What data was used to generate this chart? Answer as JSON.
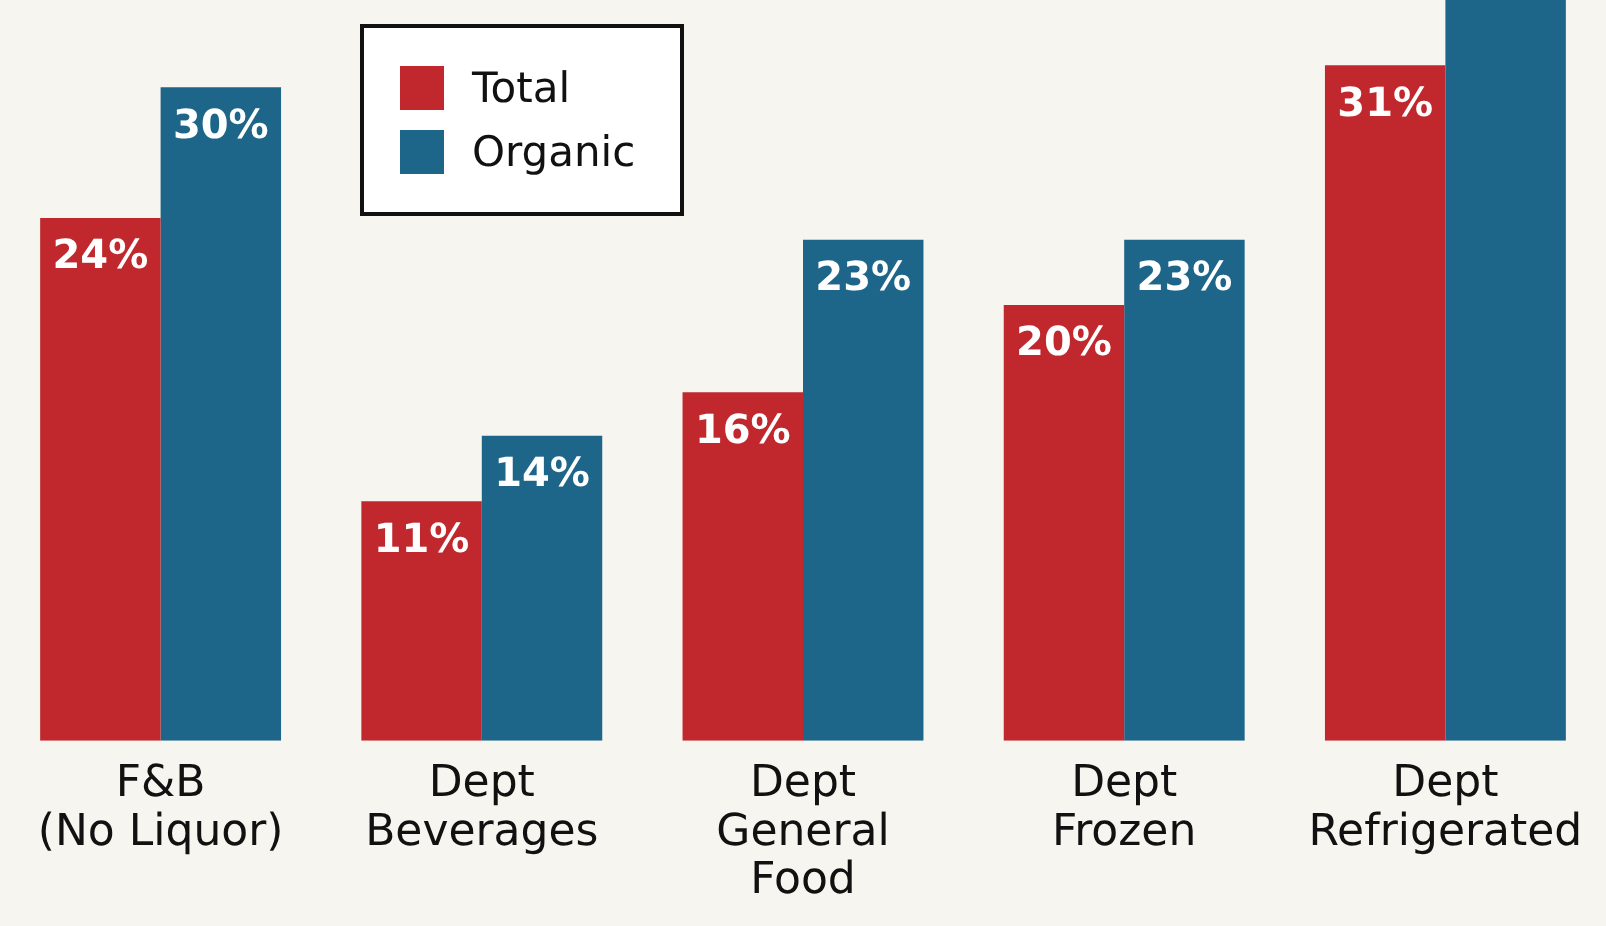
{
  "chart_data": {
    "type": "bar",
    "categories": [
      "F&B\n(No Liquor)",
      "Dept\nBeverages",
      "Dept\nGeneral\nFood",
      "Dept\nFrozen",
      "Dept\nRefrigerated"
    ],
    "series": [
      {
        "name": "Total",
        "color": "#c0282d",
        "values": [
          24,
          11,
          16,
          20,
          31
        ],
        "value_labels": [
          "24%",
          "11%",
          "16%",
          "20%",
          "31%"
        ]
      },
      {
        "name": "Organic",
        "color": "#1d6589",
        "values": [
          30,
          14,
          23,
          23,
          34
        ],
        "value_labels": [
          "30%",
          "14%",
          "23%",
          "23%",
          null
        ]
      }
    ],
    "ylim": [
      0,
      34
    ],
    "legend": "top left",
    "grid": false,
    "tick_labels": "x"
  }
}
